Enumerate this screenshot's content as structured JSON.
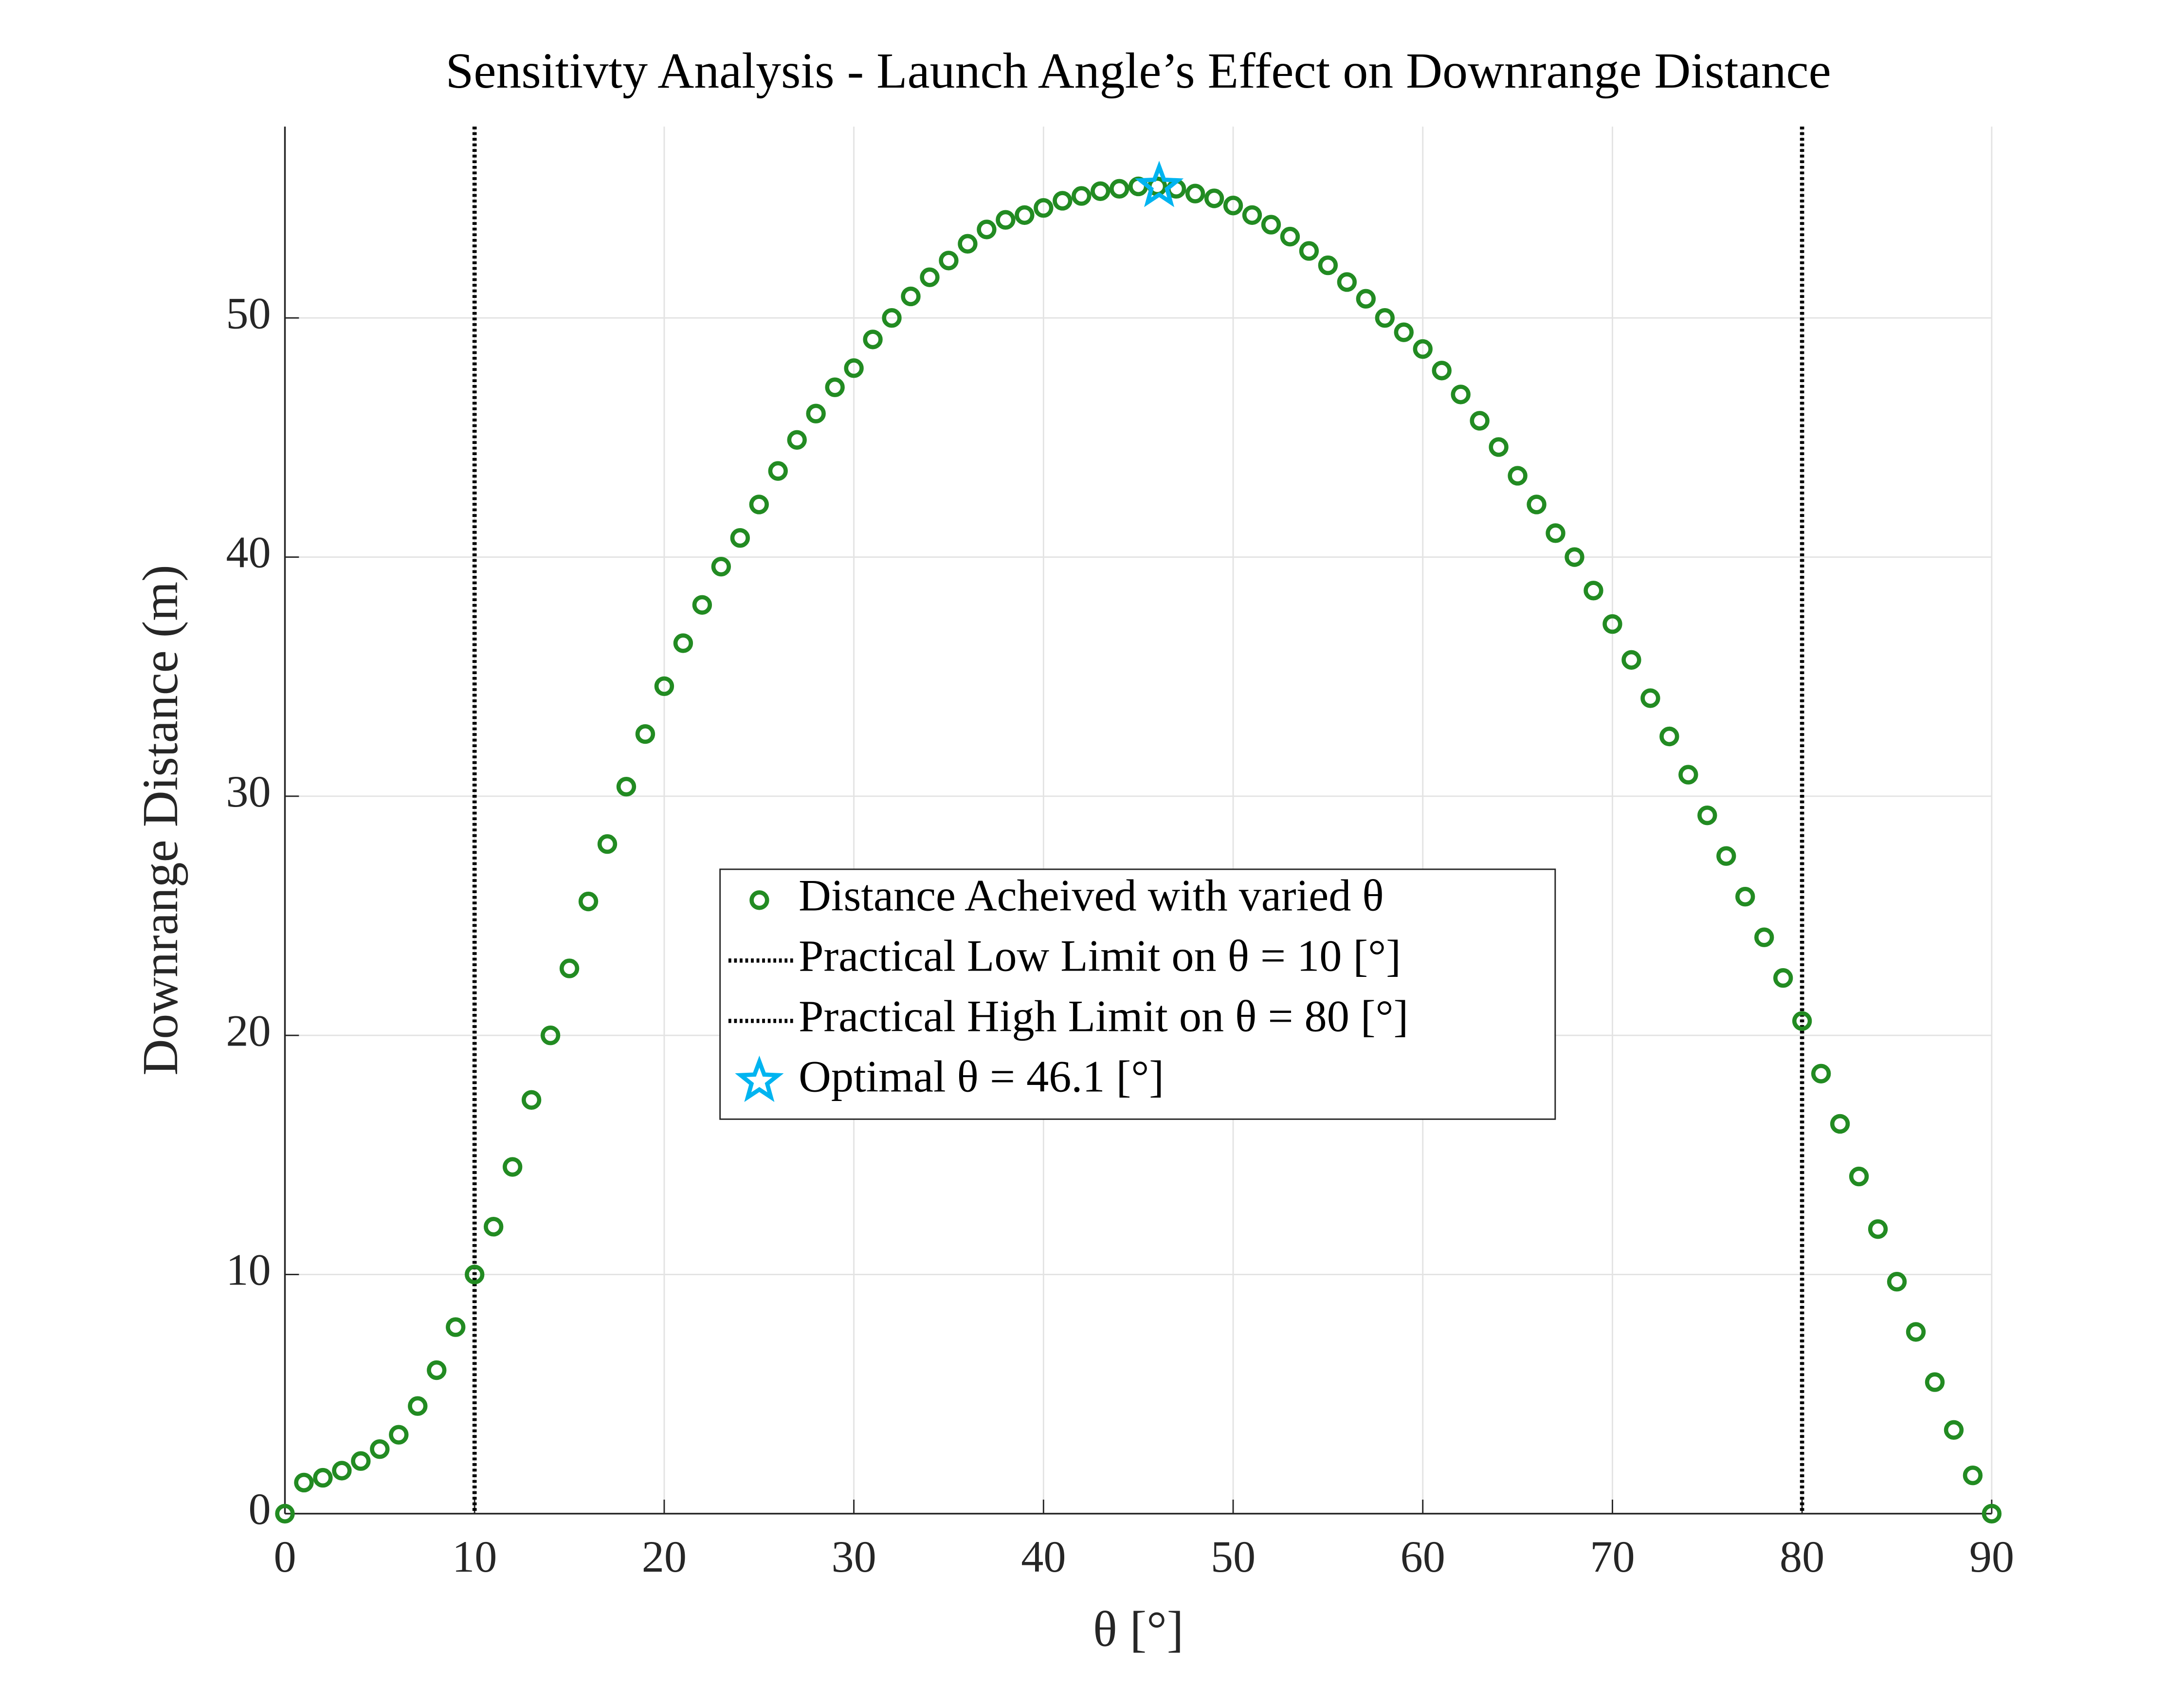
{
  "chart_data": {
    "type": "scatter",
    "title": "Sensitivty Analysis - Launch Angle’s Effect on Downrange Distance",
    "xlabel": "θ [°]",
    "ylabel": "Downrange Distance (m)",
    "xlim": [
      0,
      90
    ],
    "ylim": [
      0,
      58
    ],
    "xticks": [
      0,
      10,
      20,
      30,
      40,
      50,
      60,
      70,
      80,
      90
    ],
    "yticks": [
      0,
      10,
      20,
      30,
      40,
      50
    ],
    "grid": true,
    "series": [
      {
        "name": "Distance Acheived with varied θ",
        "color": "#228b22",
        "x": [
          0,
          1,
          2,
          3,
          4,
          5,
          6,
          7,
          8,
          9,
          10,
          11,
          12,
          13,
          14,
          15,
          16,
          17,
          18,
          19,
          20,
          21,
          22,
          23,
          24,
          25,
          26,
          27,
          28,
          29,
          30,
          31,
          32,
          33,
          34,
          35,
          36,
          37,
          38,
          39,
          40,
          41,
          42,
          43,
          44,
          45,
          46,
          47,
          48,
          49,
          50,
          51,
          52,
          53,
          54,
          55,
          56,
          57,
          58,
          59,
          60,
          61,
          62,
          63,
          64,
          65,
          66,
          67,
          68,
          69,
          70,
          71,
          72,
          73,
          74,
          75,
          76,
          77,
          78,
          79,
          80,
          81,
          82,
          83,
          84,
          85,
          86,
          87,
          88,
          89,
          90
        ],
        "values": [
          0,
          1.3,
          1.5,
          1.8,
          2.2,
          2.7,
          3.3,
          4.5,
          6.0,
          7.8,
          10.0,
          12.0,
          14.5,
          17.3,
          20.0,
          22.8,
          25.6,
          28.0,
          30.4,
          32.6,
          34.6,
          36.4,
          38.0,
          39.6,
          40.8,
          42.2,
          43.6,
          44.9,
          46.0,
          47.1,
          47.9,
          49.1,
          50.0,
          50.9,
          51.7,
          52.4,
          53.1,
          53.7,
          54.1,
          54.3,
          54.6,
          54.9,
          55.1,
          55.3,
          55.4,
          55.5,
          55.5,
          55.4,
          55.2,
          55.0,
          54.7,
          54.3,
          53.9,
          53.4,
          52.8,
          52.2,
          51.5,
          50.8,
          50.0,
          49.4,
          48.7,
          47.8,
          46.8,
          45.7,
          44.6,
          43.4,
          42.2,
          41.0,
          40.0,
          38.6,
          37.2,
          35.7,
          34.1,
          32.5,
          30.9,
          29.2,
          27.5,
          25.8,
          24.1,
          22.4,
          20.6,
          18.4,
          16.3,
          14.1,
          11.9,
          9.7,
          7.6,
          5.5,
          3.5,
          1.6,
          0
        ]
      }
    ],
    "vlines": [
      {
        "name": "Practical Low Limit on θ = 10 [°]",
        "x": 10,
        "color": "#000000"
      },
      {
        "name": "Practical High Limit on θ = 80 [°]",
        "x": 80,
        "color": "#000000"
      }
    ],
    "optimal": {
      "name": "Optimal θ = 46.1 [°]",
      "x": 46.1,
      "y": 55.5,
      "color": "#00b4f0"
    },
    "legend": "center"
  }
}
